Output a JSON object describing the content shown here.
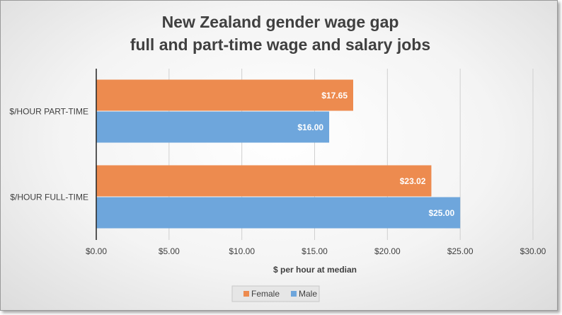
{
  "chart_data": {
    "type": "bar",
    "orientation": "horizontal",
    "title_lines": [
      "New Zealand gender wage gap",
      "full and part-time wage and salary jobs"
    ],
    "categories": [
      "$/HOUR PART-TIME",
      "$/HOUR FULL-TIME"
    ],
    "series": [
      {
        "name": "Female",
        "color": "#ed8b4f",
        "values": [
          17.65,
          23.02
        ],
        "labels": [
          "$17.65",
          "$23.02"
        ]
      },
      {
        "name": "Male",
        "color": "#6ea6dc",
        "values": [
          16.0,
          25.0
        ],
        "labels": [
          "$16.00",
          "$25.00"
        ]
      }
    ],
    "xlabel": "$ per hour  at median",
    "xlim": [
      0,
      30
    ],
    "xticks": [
      0,
      5,
      10,
      15,
      20,
      25,
      30
    ],
    "xtick_labels": [
      "$0.00",
      "$5.00",
      "$10.00",
      "$15.00",
      "$20.00",
      "$25.00",
      "$30.00"
    ],
    "grid": true,
    "legend_position": "bottom"
  }
}
